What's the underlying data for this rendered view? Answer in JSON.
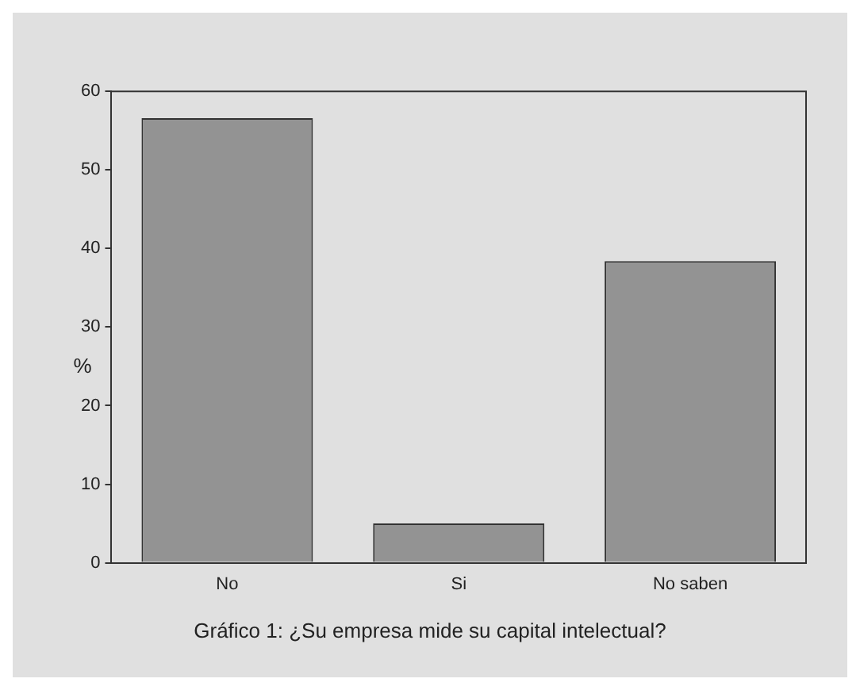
{
  "chart_data": {
    "type": "bar",
    "ylabel": "%",
    "categories": [
      "No",
      "Si",
      "No saben"
    ],
    "values": [
      56.6,
      5.0,
      38.4
    ],
    "color": "#939393",
    "ylim": [
      0,
      60
    ],
    "yticks": [
      0,
      10,
      20,
      30,
      40,
      50,
      60
    ],
    "grid": false,
    "legend": false,
    "annotations": [
      "Gráfico 1: ¿Su empresa mide su capital intelectual?"
    ]
  }
}
